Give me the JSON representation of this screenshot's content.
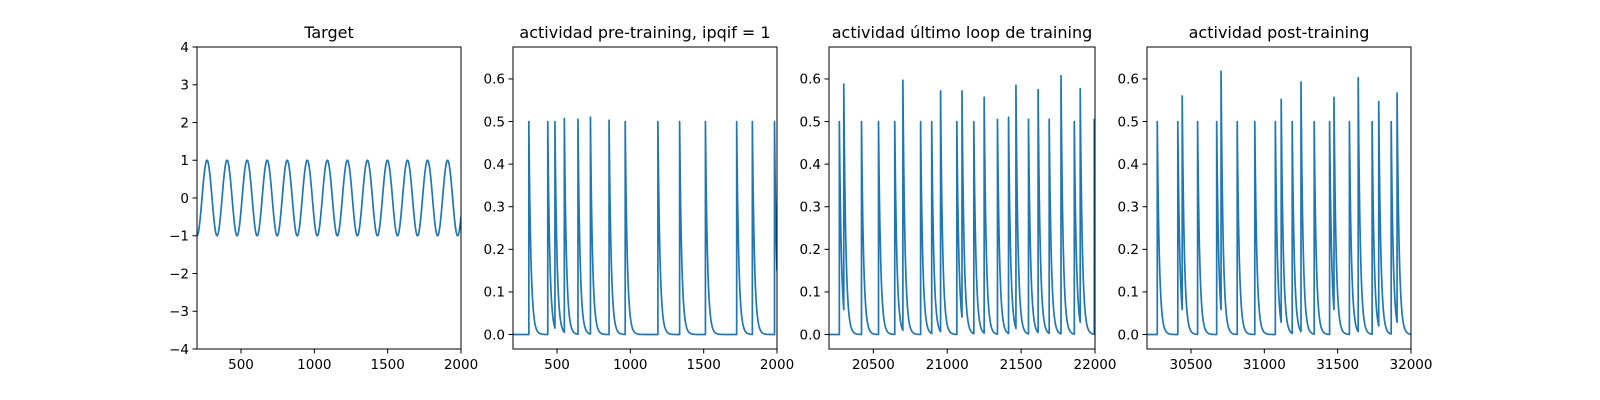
{
  "figure": {
    "line_color": "#1f77b4",
    "background": "#ffffff"
  },
  "chart_data": [
    {
      "type": "line",
      "title": "Target",
      "xlim": [
        200,
        2000
      ],
      "ylim": [
        -4,
        4
      ],
      "xticks": [
        500,
        1000,
        1500,
        2000
      ],
      "xtick_labels": [
        "500",
        "1000",
        "1500",
        "2000"
      ],
      "yticks": [
        -4,
        -3,
        -2,
        -1,
        0,
        1,
        2,
        3,
        4
      ],
      "ytick_labels": [
        "−4",
        "−3",
        "−2",
        "−1",
        "0",
        "1",
        "2",
        "3",
        "4"
      ],
      "series": [
        {
          "kind": "sine",
          "amplitude": 1,
          "period": 136.7,
          "x0": 200,
          "x1": 2000,
          "start_value": -1
        }
      ]
    },
    {
      "type": "line",
      "title": "actividad pre-training, ipqif = 1",
      "xlim": [
        200,
        2000
      ],
      "ylim": [
        -0.034,
        0.675
      ],
      "xticks": [
        500,
        1000,
        1500,
        2000
      ],
      "xtick_labels": [
        "500",
        "1000",
        "1500",
        "2000"
      ],
      "yticks": [
        0,
        0.1,
        0.2,
        0.3,
        0.4,
        0.5,
        0.6
      ],
      "ytick_labels": [
        "0.0",
        "0.1",
        "0.2",
        "0.3",
        "0.4",
        "0.5",
        "0.6"
      ],
      "series": [
        {
          "kind": "spikes",
          "x0": 200,
          "x1": 2000,
          "decay": 14,
          "spikes": [
            [
              308,
              0.5
            ],
            [
              437,
              0.5
            ],
            [
              486,
              0.5
            ],
            [
              550,
              0.507
            ],
            [
              643,
              0.505
            ],
            [
              728,
              0.51
            ],
            [
              855,
              0.503
            ],
            [
              965,
              0.5
            ],
            [
              1188,
              0.5
            ],
            [
              1336,
              0.5
            ],
            [
              1512,
              0.5
            ],
            [
              1725,
              0.5
            ],
            [
              1832,
              0.5
            ],
            [
              1983,
              0.5
            ]
          ]
        }
      ]
    },
    {
      "type": "line",
      "title": "actividad último loop de training",
      "xlim": [
        20200,
        22000
      ],
      "ylim": [
        -0.034,
        0.675
      ],
      "xticks": [
        20500,
        21000,
        21500,
        22000
      ],
      "xtick_labels": [
        "20500",
        "21000",
        "21500",
        "22000"
      ],
      "yticks": [
        0,
        0.1,
        0.2,
        0.3,
        0.4,
        0.5,
        0.6
      ],
      "ytick_labels": [
        "0.0",
        "0.1",
        "0.2",
        "0.3",
        "0.4",
        "0.5",
        "0.6"
      ],
      "series": [
        {
          "kind": "spikes",
          "x0": 20200,
          "x1": 22000,
          "decay": 14,
          "spikes": [
            [
              20270,
              0.5
            ],
            [
              20300,
              0.588
            ],
            [
              20420,
              0.5
            ],
            [
              20535,
              0.5
            ],
            [
              20645,
              0.5
            ],
            [
              20700,
              0.597
            ],
            [
              20820,
              0.5
            ],
            [
              20895,
              0.5
            ],
            [
              20955,
              0.572
            ],
            [
              21065,
              0.5
            ],
            [
              21100,
              0.572
            ],
            [
              21180,
              0.5
            ],
            [
              21250,
              0.557
            ],
            [
              21340,
              0.505
            ],
            [
              21415,
              0.51
            ],
            [
              21465,
              0.585
            ],
            [
              21550,
              0.505
            ],
            [
              21615,
              0.575
            ],
            [
              21690,
              0.505
            ],
            [
              21770,
              0.608
            ],
            [
              21860,
              0.5
            ],
            [
              21900,
              0.577
            ],
            [
              21995,
              0.505
            ]
          ]
        }
      ]
    },
    {
      "type": "line",
      "title": "actividad post-training",
      "xlim": [
        30200,
        32000
      ],
      "ylim": [
        -0.034,
        0.675
      ],
      "xticks": [
        30500,
        31000,
        31500,
        32000
      ],
      "xtick_labels": [
        "30500",
        "31000",
        "31500",
        "32000"
      ],
      "yticks": [
        0,
        0.1,
        0.2,
        0.3,
        0.4,
        0.5,
        0.6
      ],
      "ytick_labels": [
        "0.0",
        "0.1",
        "0.2",
        "0.3",
        "0.4",
        "0.5",
        "0.6"
      ],
      "series": [
        {
          "kind": "spikes",
          "x0": 30200,
          "x1": 32000,
          "decay": 14,
          "spikes": [
            [
              30270,
              0.5
            ],
            [
              30410,
              0.5
            ],
            [
              30440,
              0.56
            ],
            [
              30545,
              0.5
            ],
            [
              30675,
              0.5
            ],
            [
              30705,
              0.618
            ],
            [
              30815,
              0.5
            ],
            [
              30935,
              0.5
            ],
            [
              31075,
              0.5
            ],
            [
              31115,
              0.552
            ],
            [
              31190,
              0.5
            ],
            [
              31250,
              0.593
            ],
            [
              31340,
              0.5
            ],
            [
              31445,
              0.5
            ],
            [
              31475,
              0.557
            ],
            [
              31580,
              0.5
            ],
            [
              31640,
              0.603
            ],
            [
              31735,
              0.5
            ],
            [
              31780,
              0.547
            ],
            [
              31865,
              0.5
            ],
            [
              31905,
              0.567
            ]
          ]
        }
      ]
    }
  ]
}
